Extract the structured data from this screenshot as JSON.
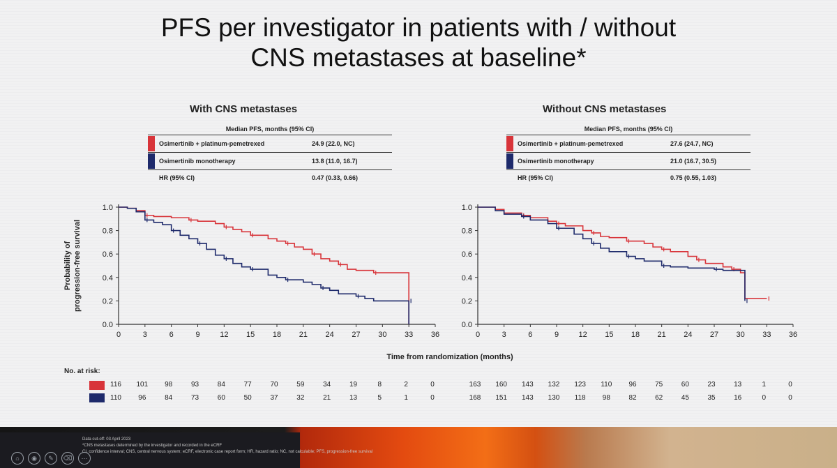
{
  "title_line1": "PFS per investigator in patients with / without",
  "title_line2": "CNS metastases at baseline*",
  "colors": {
    "red": "#d8343a",
    "blue": "#1e2a6b"
  },
  "legend_common": {
    "header": "Median PFS, months (95% CI)",
    "arm1": "Osimertinib + platinum-pemetrexed",
    "arm2": "Osimertinib monotherapy",
    "hr_label": "HR (95% CI)"
  },
  "panels": [
    {
      "title": "With CNS metastases",
      "arm1_median": "24.9 (22.0, NC)",
      "arm2_median": "13.8 (11.0, 16.7)",
      "hr": "0.47 (0.33, 0.66)"
    },
    {
      "title": "Without CNS metastases",
      "arm1_median": "27.6 (24.7, NC)",
      "arm2_median": "21.0 (16.7, 30.5)",
      "hr": "0.75 (0.55, 1.03)"
    }
  ],
  "chart_data": [
    {
      "type": "line",
      "title": "With CNS metastases",
      "xlabel": "Time from randomization (months)",
      "ylabel": "Probability of progression-free survival",
      "xlim": [
        0,
        36
      ],
      "ylim": [
        0,
        1.0
      ],
      "x_ticks": [
        0,
        3,
        6,
        9,
        12,
        15,
        18,
        21,
        24,
        27,
        30,
        33,
        36
      ],
      "y_ticks": [
        0,
        0.2,
        0.4,
        0.6,
        0.8,
        1.0
      ],
      "series": [
        {
          "name": "Osimertinib + platinum-pemetrexed",
          "color": "red",
          "points": [
            [
              0,
              1.0
            ],
            [
              1,
              0.99
            ],
            [
              2,
              0.97
            ],
            [
              3,
              0.93
            ],
            [
              4,
              0.92
            ],
            [
              6,
              0.91
            ],
            [
              8,
              0.89
            ],
            [
              9,
              0.88
            ],
            [
              11,
              0.86
            ],
            [
              12,
              0.83
            ],
            [
              13,
              0.81
            ],
            [
              14,
              0.79
            ],
            [
              15,
              0.76
            ],
            [
              17,
              0.73
            ],
            [
              18,
              0.71
            ],
            [
              19,
              0.69
            ],
            [
              20,
              0.66
            ],
            [
              21,
              0.64
            ],
            [
              22,
              0.6
            ],
            [
              23,
              0.56
            ],
            [
              24,
              0.54
            ],
            [
              25,
              0.51
            ],
            [
              26,
              0.47
            ],
            [
              27,
              0.46
            ],
            [
              29,
              0.44
            ],
            [
              33,
              0.44
            ],
            [
              33,
              0
            ]
          ]
        },
        {
          "name": "Osimertinib monotherapy",
          "color": "blue",
          "points": [
            [
              0,
              1.0
            ],
            [
              1,
              0.99
            ],
            [
              2,
              0.96
            ],
            [
              3,
              0.89
            ],
            [
              4,
              0.87
            ],
            [
              5,
              0.85
            ],
            [
              6,
              0.8
            ],
            [
              7,
              0.76
            ],
            [
              8,
              0.73
            ],
            [
              9,
              0.69
            ],
            [
              10,
              0.64
            ],
            [
              11,
              0.59
            ],
            [
              12,
              0.56
            ],
            [
              13,
              0.52
            ],
            [
              14,
              0.49
            ],
            [
              15,
              0.47
            ],
            [
              17,
              0.42
            ],
            [
              18,
              0.4
            ],
            [
              19,
              0.38
            ],
            [
              21,
              0.36
            ],
            [
              22,
              0.34
            ],
            [
              23,
              0.31
            ],
            [
              24,
              0.29
            ],
            [
              25,
              0.26
            ],
            [
              27,
              0.24
            ],
            [
              28,
              0.22
            ],
            [
              29,
              0.2
            ],
            [
              33,
              0.2
            ],
            [
              33,
              0
            ]
          ]
        }
      ],
      "at_risk": {
        "label": "No. at risk:",
        "arm1": [
          116,
          101,
          98,
          93,
          84,
          77,
          70,
          59,
          34,
          19,
          8,
          2,
          0
        ],
        "arm2": [
          110,
          96,
          84,
          73,
          60,
          50,
          37,
          32,
          21,
          13,
          5,
          1,
          0
        ]
      }
    },
    {
      "type": "line",
      "title": "Without CNS metastases",
      "xlabel": "Time from randomization (months)",
      "ylabel": "Probability of progression-free survival",
      "xlim": [
        0,
        36
      ],
      "ylim": [
        0,
        1.0
      ],
      "x_ticks": [
        0,
        3,
        6,
        9,
        12,
        15,
        18,
        21,
        24,
        27,
        30,
        33,
        36
      ],
      "y_ticks": [
        0,
        0.2,
        0.4,
        0.6,
        0.8,
        1.0
      ],
      "series": [
        {
          "name": "Osimertinib + platinum-pemetrexed",
          "color": "red",
          "points": [
            [
              0,
              1.0
            ],
            [
              2,
              0.98
            ],
            [
              3,
              0.95
            ],
            [
              5,
              0.93
            ],
            [
              6,
              0.91
            ],
            [
              8,
              0.88
            ],
            [
              9,
              0.86
            ],
            [
              10,
              0.84
            ],
            [
              12,
              0.8
            ],
            [
              13,
              0.78
            ],
            [
              14,
              0.75
            ],
            [
              15,
              0.74
            ],
            [
              17,
              0.71
            ],
            [
              19,
              0.69
            ],
            [
              20,
              0.66
            ],
            [
              21,
              0.64
            ],
            [
              22,
              0.62
            ],
            [
              24,
              0.58
            ],
            [
              25,
              0.55
            ],
            [
              26,
              0.52
            ],
            [
              28,
              0.49
            ],
            [
              29,
              0.47
            ],
            [
              30,
              0.44
            ],
            [
              30.5,
              0.22
            ],
            [
              33,
              0.22
            ]
          ]
        },
        {
          "name": "Osimertinib monotherapy",
          "color": "blue",
          "points": [
            [
              0,
              1.0
            ],
            [
              2,
              0.97
            ],
            [
              3,
              0.94
            ],
            [
              5,
              0.92
            ],
            [
              6,
              0.89
            ],
            [
              8,
              0.86
            ],
            [
              9,
              0.82
            ],
            [
              11,
              0.77
            ],
            [
              12,
              0.73
            ],
            [
              13,
              0.69
            ],
            [
              14,
              0.65
            ],
            [
              15,
              0.62
            ],
            [
              17,
              0.58
            ],
            [
              18,
              0.56
            ],
            [
              19,
              0.54
            ],
            [
              21,
              0.5
            ],
            [
              22,
              0.49
            ],
            [
              24,
              0.48
            ],
            [
              27,
              0.47
            ],
            [
              28,
              0.46
            ],
            [
              30,
              0.46
            ],
            [
              30.5,
              0.2
            ]
          ]
        }
      ],
      "at_risk": {
        "label": "",
        "arm1": [
          163,
          160,
          143,
          132,
          123,
          110,
          96,
          75,
          60,
          23,
          13,
          1,
          0
        ],
        "arm2": [
          168,
          151,
          143,
          130,
          118,
          98,
          82,
          62,
          45,
          35,
          16,
          0,
          0
        ]
      }
    }
  ],
  "taskbar": {
    "footnote_line1": "Data cut-off: 03 April 2023",
    "footnote_line2": "*CNS metastases determined by the investigator and recorded in the eCRF",
    "footnote_line3": "CI, confidence interval; CNS, central nervous system; eCRF, electronic case report form; HR, hazard ratio; NC, not calculable; PFS, progression-free survival",
    "icons": [
      "home-icon",
      "eye-icon",
      "pen-icon",
      "eraser-icon",
      "more-icon"
    ]
  }
}
